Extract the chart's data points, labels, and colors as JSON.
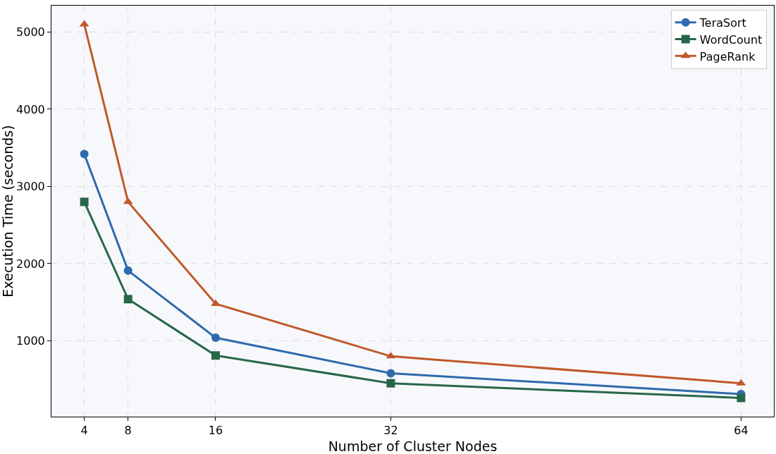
{
  "chart_data": {
    "type": "line",
    "xlabel": "Number of Cluster Nodes",
    "ylabel": "Execution Time (seconds)",
    "x": [
      4,
      8,
      16,
      32,
      64
    ],
    "series": [
      {
        "name": "TeraSort",
        "color": "#2e6aad",
        "marker": "circle",
        "values": [
          3420,
          1910,
          1040,
          580,
          310
        ]
      },
      {
        "name": "WordCount",
        "color": "#276749",
        "marker": "square",
        "values": [
          2800,
          1540,
          810,
          450,
          260
        ]
      },
      {
        "name": "PageRank",
        "color": "#c0582a",
        "marker": "triangle",
        "values": [
          5100,
          2800,
          1480,
          800,
          450
        ]
      }
    ],
    "xlim": [
      1,
      67
    ],
    "xticks": [
      4,
      8,
      16,
      32,
      64
    ],
    "ylim": [
      18,
      5342
    ],
    "yticks": [
      1000,
      2000,
      3000,
      4000,
      5000
    ],
    "grid": true,
    "legend": "top right",
    "line_style": "solid"
  }
}
